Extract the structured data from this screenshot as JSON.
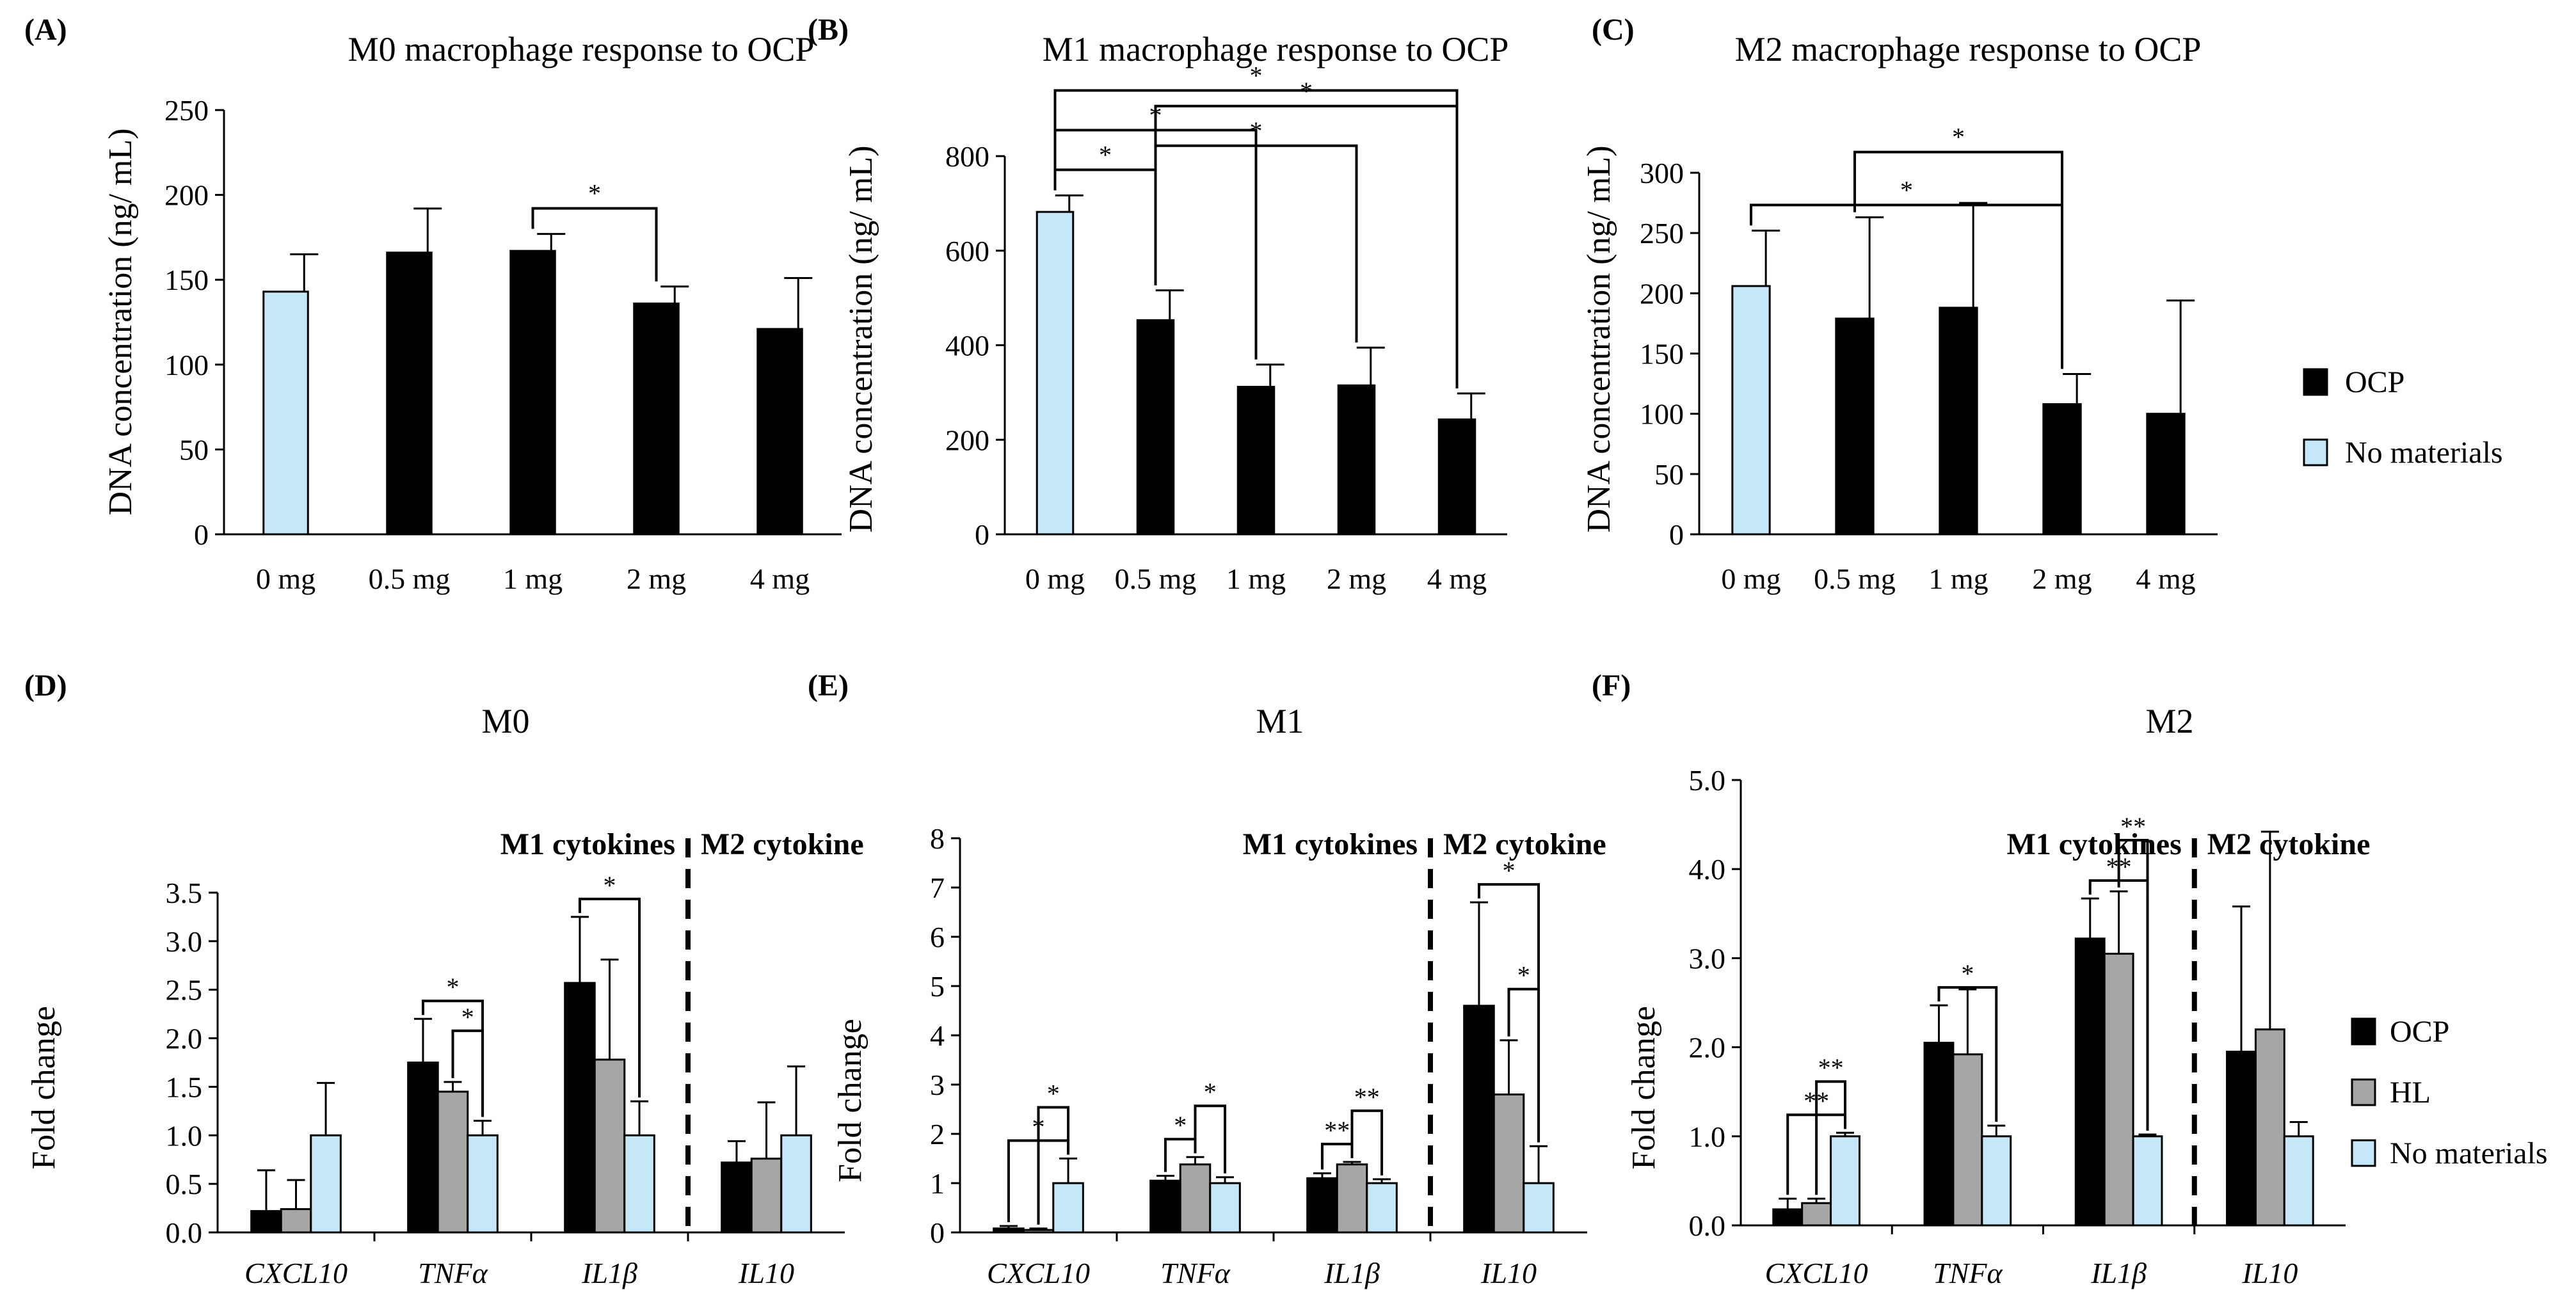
{
  "figure": {
    "legend_top": [
      "OCP",
      "No materials"
    ],
    "legend_bottom": [
      "OCP",
      "HL",
      "No materials"
    ]
  },
  "colors": {
    "ocp": "#000000",
    "hl": "#a6a6a6",
    "no_materials": "#c5e7f7",
    "axis": "#000000"
  },
  "chart_data": [
    {
      "panel": "(A)",
      "type": "bar",
      "title": "M0 macrophage response to OCP",
      "xlabel": "",
      "ylabel": "DNA concentration (ng/ mL)",
      "categories": [
        "0 mg",
        "0.5 mg",
        "1 mg",
        "2 mg",
        "4 mg"
      ],
      "values": [
        143,
        166,
        167,
        136,
        121
      ],
      "errors": [
        22,
        26,
        10,
        10,
        30
      ],
      "bar_colors": [
        "no_materials",
        "ocp",
        "ocp",
        "ocp",
        "ocp"
      ],
      "yticks": [
        "0",
        "50",
        "100",
        "150",
        "200",
        "250"
      ],
      "ylim": [
        0,
        250
      ],
      "significance": [
        {
          "from": 2,
          "to": 3,
          "label": "*"
        }
      ]
    },
    {
      "panel": "(B)",
      "type": "bar",
      "title": "M1 macrophage response to OCP",
      "xlabel": "",
      "ylabel": "DNA concentration (ng/ mL)",
      "categories": [
        "0 mg",
        "0.5 mg",
        "1 mg",
        "2 mg",
        "4 mg"
      ],
      "values": [
        682,
        453,
        312,
        315,
        243
      ],
      "errors": [
        35,
        63,
        47,
        80,
        55
      ],
      "bar_colors": [
        "no_materials",
        "ocp",
        "ocp",
        "ocp",
        "ocp"
      ],
      "yticks": [
        "0",
        "200",
        "400",
        "600",
        "800"
      ],
      "ylim": [
        0,
        800
      ],
      "significance": [
        {
          "from": 0,
          "to": 1,
          "label": "*"
        },
        {
          "from": 0,
          "to": 2,
          "label": "*"
        },
        {
          "from": 0,
          "to": 4,
          "label": "*"
        },
        {
          "from": 1,
          "to": 3,
          "label": "*"
        },
        {
          "from": 1,
          "to": 4,
          "label": "*"
        }
      ]
    },
    {
      "panel": "(C)",
      "type": "bar",
      "title": "M2 macrophage response to OCP",
      "xlabel": "",
      "ylabel": "DNA concentration (ng/ mL)",
      "categories": [
        "0 mg",
        "0.5 mg",
        "1 mg",
        "2 mg",
        "4 mg"
      ],
      "values": [
        206,
        179,
        188,
        108,
        100
      ],
      "errors": [
        46,
        84,
        87,
        25,
        94
      ],
      "bar_colors": [
        "no_materials",
        "ocp",
        "ocp",
        "ocp",
        "ocp"
      ],
      "yticks": [
        "0",
        "50",
        "100",
        "150",
        "200",
        "250",
        "300"
      ],
      "ylim": [
        0,
        300
      ],
      "significance": [
        {
          "from": 0,
          "to": 3,
          "label": "*"
        },
        {
          "from": 1,
          "to": 3,
          "label": "*"
        }
      ]
    },
    {
      "panel": "(D)",
      "type": "bar",
      "title": "M0",
      "xlabel": "",
      "ylabel": "Fold change",
      "group_labels": [
        "M1 cytokines",
        "M2 cytokine"
      ],
      "categories": [
        "CXCL10",
        "TNFα",
        "IL1β",
        "IL10"
      ],
      "series": [
        {
          "name": "OCP",
          "values": [
            0.22,
            1.75,
            2.57,
            0.72
          ],
          "errors": [
            0.42,
            0.45,
            0.68,
            0.22
          ]
        },
        {
          "name": "HL",
          "values": [
            0.24,
            1.45,
            1.78,
            0.76
          ],
          "errors": [
            0.3,
            0.1,
            1.03,
            0.58
          ]
        },
        {
          "name": "No materials",
          "values": [
            1.0,
            1.0,
            1.0,
            1.0
          ],
          "errors": [
            0.54,
            0.15,
            0.35,
            0.71
          ]
        }
      ],
      "yticks": [
        "0.0",
        "0.5",
        "1.0",
        "1.5",
        "2.0",
        "2.5",
        "3.0",
        "3.5"
      ],
      "ylim": [
        0,
        3.5
      ],
      "significance": [
        {
          "group": 1,
          "from": 0,
          "to": 2,
          "label": "*"
        },
        {
          "group": 1,
          "from": 1,
          "to": 2,
          "label": "*"
        },
        {
          "group": 2,
          "from": 0,
          "to": 2,
          "label": "*"
        }
      ]
    },
    {
      "panel": "(E)",
      "type": "bar",
      "title": "M1",
      "xlabel": "",
      "ylabel": "Fold change",
      "group_labels": [
        "M1 cytokines",
        "M2 cytokine"
      ],
      "categories": [
        "CXCL10",
        "TNFα",
        "IL1β",
        "IL10"
      ],
      "series": [
        {
          "name": "OCP",
          "values": [
            0.08,
            1.05,
            1.1,
            4.6
          ],
          "errors": [
            0.05,
            0.1,
            0.1,
            2.1
          ]
        },
        {
          "name": "HL",
          "values": [
            0.05,
            1.38,
            1.38,
            2.8
          ],
          "errors": [
            0.03,
            0.15,
            0.05,
            1.1
          ]
        },
        {
          "name": "No materials",
          "values": [
            1.0,
            1.0,
            1.0,
            1.0
          ],
          "errors": [
            0.5,
            0.12,
            0.08,
            0.75
          ]
        }
      ],
      "yticks": [
        "0",
        "1",
        "2",
        "3",
        "4",
        "5",
        "6",
        "7",
        "8"
      ],
      "ylim": [
        0,
        8
      ],
      "significance": [
        {
          "group": 0,
          "from": 0,
          "to": 2,
          "label": "*"
        },
        {
          "group": 0,
          "from": 1,
          "to": 2,
          "label": "*"
        },
        {
          "group": 1,
          "from": 0,
          "to": 1,
          "label": "*"
        },
        {
          "group": 1,
          "from": 1,
          "to": 2,
          "label": "*"
        },
        {
          "group": 2,
          "from": 0,
          "to": 1,
          "label": "**"
        },
        {
          "group": 2,
          "from": 1,
          "to": 2,
          "label": "**"
        },
        {
          "group": 3,
          "from": 0,
          "to": 2,
          "label": "*"
        },
        {
          "group": 3,
          "from": 1,
          "to": 2,
          "label": "*"
        }
      ]
    },
    {
      "panel": "(F)",
      "type": "bar",
      "title": "M2",
      "xlabel": "",
      "ylabel": "Fold change",
      "group_labels": [
        "M1 cytokines",
        "M2 cytokine"
      ],
      "categories": [
        "CXCL10",
        "TNFα",
        "IL1β",
        "IL10"
      ],
      "series": [
        {
          "name": "OCP",
          "values": [
            0.18,
            2.05,
            3.22,
            1.95
          ],
          "errors": [
            0.12,
            0.42,
            0.45,
            1.63
          ]
        },
        {
          "name": "HL",
          "values": [
            0.25,
            1.92,
            3.05,
            2.2
          ],
          "errors": [
            0.05,
            0.73,
            0.7,
            2.22
          ]
        },
        {
          "name": "No materials",
          "values": [
            1.0,
            1.0,
            1.0,
            1.0
          ],
          "errors": [
            0.04,
            0.12,
            0.02,
            0.16
          ]
        }
      ],
      "yticks": [
        "0.0",
        "1.0",
        "2.0",
        "3.0",
        "4.0",
        "5.0"
      ],
      "ylim": [
        0,
        5
      ],
      "significance": [
        {
          "group": 0,
          "from": 0,
          "to": 2,
          "label": "**"
        },
        {
          "group": 0,
          "from": 1,
          "to": 2,
          "label": "**"
        },
        {
          "group": 1,
          "from": 0,
          "to": 2,
          "label": "*"
        },
        {
          "group": 2,
          "from": 0,
          "to": 2,
          "label": "**"
        },
        {
          "group": 2,
          "from": 1,
          "to": 2,
          "label": "**"
        }
      ]
    }
  ]
}
